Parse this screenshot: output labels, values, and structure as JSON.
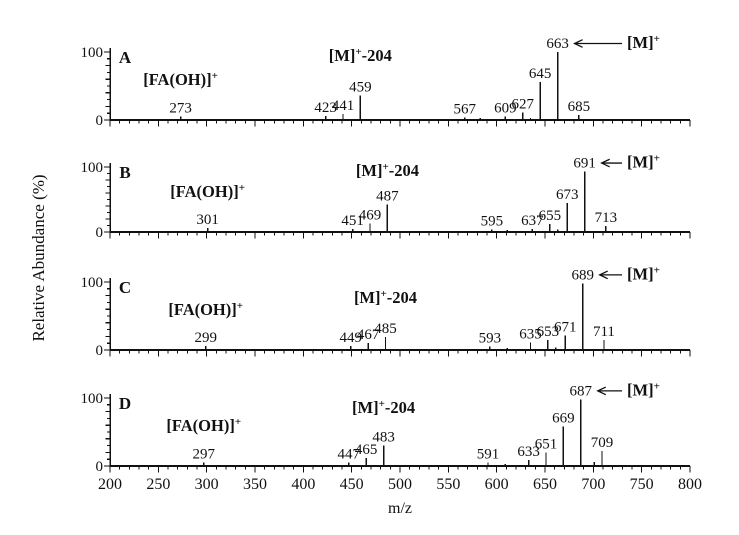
{
  "chart_data": {
    "type": "bar",
    "chart_kind": "mass-spectrum-stick-plot",
    "title": "",
    "xlabel": "m/z",
    "ylabel": "Relative Abundance (%)",
    "xlim": [
      200,
      800
    ],
    "ylim": [
      0,
      100
    ],
    "x_major_tick_interval": 50,
    "x_minor_tick_interval": 10,
    "x_tick_labels": [
      "200",
      "250",
      "300",
      "350",
      "400",
      "450",
      "500",
      "550",
      "600",
      "650",
      "700",
      "750",
      "800"
    ],
    "y_tick_labels": [
      "0",
      "100"
    ],
    "grid": "off",
    "panels": [
      {
        "label": "A",
        "fa_annotation": "[FA(OH)]⁺",
        "fa_peak_mz": 273,
        "loss_annotation": "[M]⁺-204",
        "loss_peak_mz": 459,
        "molecular_ion_annotation": "[M]⁺",
        "molecular_ion_mz": 663,
        "peaks": [
          {
            "mz": 273,
            "intensity": 5,
            "label": "273"
          },
          {
            "mz": 423,
            "intensity": 6,
            "label": "423"
          },
          {
            "mz": 441,
            "intensity": 9,
            "label": "441"
          },
          {
            "mz": 459,
            "intensity": 36,
            "label": "459"
          },
          {
            "mz": 567,
            "intensity": 4,
            "label": "567"
          },
          {
            "mz": 583,
            "intensity": 3,
            "label": ""
          },
          {
            "mz": 609,
            "intensity": 5,
            "label": "609"
          },
          {
            "mz": 627,
            "intensity": 11,
            "label": "627"
          },
          {
            "mz": 635,
            "intensity": 3,
            "label": ""
          },
          {
            "mz": 645,
            "intensity": 56,
            "label": "645"
          },
          {
            "mz": 663,
            "intensity": 100,
            "label": "663"
          },
          {
            "mz": 685,
            "intensity": 7,
            "label": "685"
          }
        ]
      },
      {
        "label": "B",
        "fa_annotation": "[FA(OH)]⁺",
        "fa_peak_mz": 301,
        "loss_annotation": "[M]⁺-204",
        "loss_peak_mz": 487,
        "molecular_ion_annotation": "[M]⁺",
        "molecular_ion_mz": 691,
        "peaks": [
          {
            "mz": 301,
            "intensity": 6,
            "label": "301"
          },
          {
            "mz": 451,
            "intensity": 5,
            "label": "451"
          },
          {
            "mz": 469,
            "intensity": 13,
            "label": "469"
          },
          {
            "mz": 487,
            "intensity": 42,
            "label": "487"
          },
          {
            "mz": 595,
            "intensity": 4,
            "label": "595"
          },
          {
            "mz": 611,
            "intensity": 3,
            "label": ""
          },
          {
            "mz": 637,
            "intensity": 5,
            "label": "637"
          },
          {
            "mz": 655,
            "intensity": 12,
            "label": "655"
          },
          {
            "mz": 663,
            "intensity": 4,
            "label": ""
          },
          {
            "mz": 673,
            "intensity": 45,
            "label": "673"
          },
          {
            "mz": 691,
            "intensity": 93,
            "label": "691"
          },
          {
            "mz": 713,
            "intensity": 9,
            "label": "713"
          }
        ]
      },
      {
        "label": "C",
        "fa_annotation": "[FA(OH)]⁺",
        "fa_peak_mz": 299,
        "loss_annotation": "[M]⁺-204",
        "loss_peak_mz": 485,
        "molecular_ion_annotation": "[M]⁺",
        "molecular_ion_mz": 689,
        "peaks": [
          {
            "mz": 299,
            "intensity": 6,
            "label": "299"
          },
          {
            "mz": 449,
            "intensity": 6,
            "label": "449"
          },
          {
            "mz": 467,
            "intensity": 10,
            "label": "467"
          },
          {
            "mz": 485,
            "intensity": 19,
            "label": "485"
          },
          {
            "mz": 593,
            "intensity": 5,
            "label": "593"
          },
          {
            "mz": 611,
            "intensity": 3,
            "label": ""
          },
          {
            "mz": 635,
            "intensity": 11,
            "label": "635"
          },
          {
            "mz": 653,
            "intensity": 15,
            "label": "653"
          },
          {
            "mz": 661,
            "intensity": 4,
            "label": ""
          },
          {
            "mz": 671,
            "intensity": 21,
            "label": "671"
          },
          {
            "mz": 689,
            "intensity": 98,
            "label": "689"
          },
          {
            "mz": 711,
            "intensity": 15,
            "label": "711"
          }
        ]
      },
      {
        "label": "D",
        "fa_annotation": "[FA(OH)]⁺",
        "fa_peak_mz": 297,
        "loss_annotation": "[M]⁺-204",
        "loss_peak_mz": 483,
        "molecular_ion_annotation": "[M]⁺",
        "molecular_ion_mz": 687,
        "peaks": [
          {
            "mz": 297,
            "intensity": 5,
            "label": "297"
          },
          {
            "mz": 447,
            "intensity": 5,
            "label": "447"
          },
          {
            "mz": 465,
            "intensity": 12,
            "label": "465"
          },
          {
            "mz": 483,
            "intensity": 30,
            "label": "483"
          },
          {
            "mz": 591,
            "intensity": 5,
            "label": "591"
          },
          {
            "mz": 609,
            "intensity": 3,
            "label": ""
          },
          {
            "mz": 633,
            "intensity": 9,
            "label": "633"
          },
          {
            "mz": 651,
            "intensity": 20,
            "label": "651"
          },
          {
            "mz": 669,
            "intensity": 58,
            "label": "669"
          },
          {
            "mz": 687,
            "intensity": 98,
            "label": "687"
          },
          {
            "mz": 701,
            "intensity": 6,
            "label": ""
          },
          {
            "mz": 709,
            "intensity": 22,
            "label": "709"
          }
        ]
      }
    ]
  }
}
